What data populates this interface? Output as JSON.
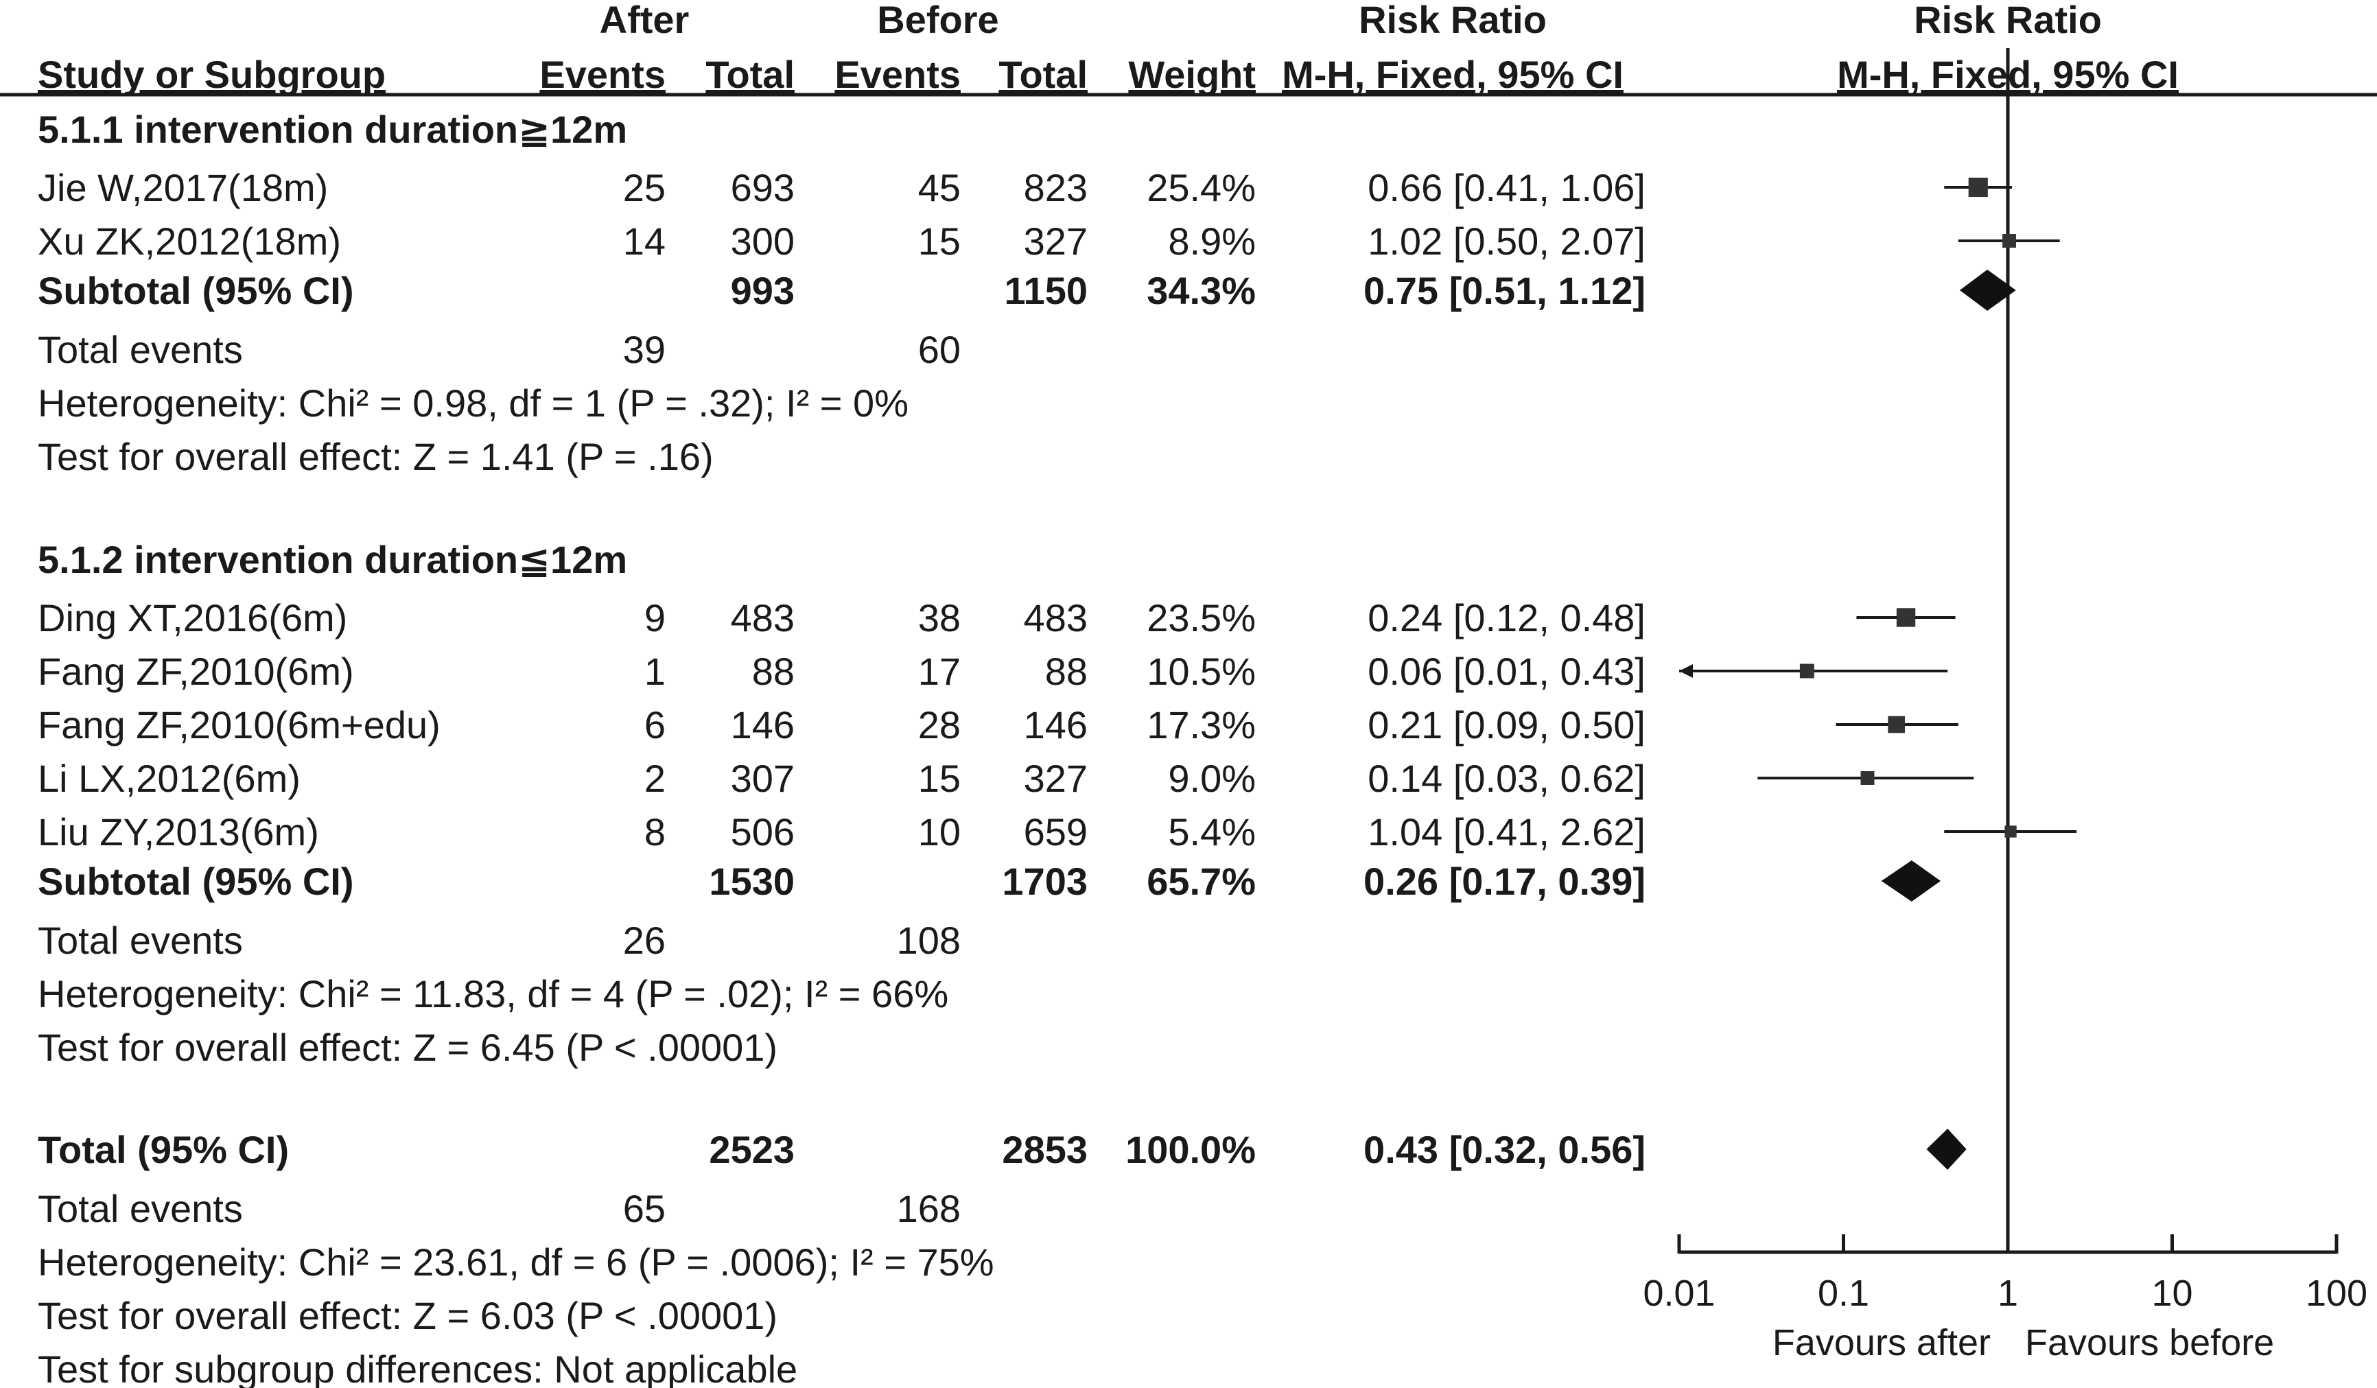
{
  "chart_data": {
    "type": "forest",
    "columns": {
      "group_after": "After",
      "group_before": "Before",
      "group_rr_table": "Risk Ratio",
      "group_rr_plot": "Risk Ratio",
      "study": "Study or Subgroup",
      "after_events": "Events",
      "after_total": "Total",
      "before_events": "Events",
      "before_total": "Total",
      "weight": "Weight",
      "rr_method_table": "M-H, Fixed, 95% CI",
      "rr_method_plot": "M-H, Fixed, 95% CI"
    },
    "axis": {
      "scale": "log",
      "range": [
        0.01,
        100
      ],
      "ticks": [
        0.01,
        0.1,
        1,
        10,
        100
      ],
      "tick_labels": [
        "0.01",
        "0.1",
        "1",
        "10",
        "100"
      ],
      "favours_left": "Favours after",
      "favours_right": "Favours before"
    },
    "groups": [
      {
        "title": "5.1.1 intervention duration≧12m",
        "studies": [
          {
            "name": "Jie W,2017(18m)",
            "after_events": "25",
            "after_total": "693",
            "before_events": "45",
            "before_total": "823",
            "weight": "25.4%",
            "ci_text": "0.66 [0.41, 1.06]",
            "rr": 0.66,
            "lo": 0.41,
            "hi": 1.06,
            "w": 25.4
          },
          {
            "name": "Xu ZK,2012(18m)",
            "after_events": "14",
            "after_total": "300",
            "before_events": "15",
            "before_total": "327",
            "weight": "8.9%",
            "ci_text": "1.02 [0.50, 2.07]",
            "rr": 1.02,
            "lo": 0.5,
            "hi": 2.07,
            "w": 8.9
          }
        ],
        "subtotal": {
          "label": "Subtotal (95% CI)",
          "after_total": "993",
          "before_total": "1150",
          "weight": "34.3%",
          "ci_text": "0.75 [0.51, 1.12]",
          "rr": 0.75,
          "lo": 0.51,
          "hi": 1.12
        },
        "total_events": {
          "label": "Total events",
          "after": "39",
          "before": "60"
        },
        "heterogeneity": "Heterogeneity: Chi² = 0.98, df = 1 (P = .32); I² = 0%",
        "overall": "Test for overall effect: Z = 1.41 (P = .16)"
      },
      {
        "title": "5.1.2 intervention duration≦12m",
        "studies": [
          {
            "name": "Ding XT,2016(6m)",
            "after_events": "9",
            "after_total": "483",
            "before_events": "38",
            "before_total": "483",
            "weight": "23.5%",
            "ci_text": "0.24 [0.12, 0.48]",
            "rr": 0.24,
            "lo": 0.12,
            "hi": 0.48,
            "w": 23.5
          },
          {
            "name": "Fang ZF,2010(6m)",
            "after_events": "1",
            "after_total": "88",
            "before_events": "17",
            "before_total": "88",
            "weight": "10.5%",
            "ci_text": "0.06 [0.01, 0.43]",
            "rr": 0.06,
            "lo": 0.01,
            "hi": 0.43,
            "w": 10.5
          },
          {
            "name": "Fang ZF,2010(6m+edu)",
            "after_events": "6",
            "after_total": "146",
            "before_events": "28",
            "before_total": "146",
            "weight": "17.3%",
            "ci_text": "0.21 [0.09, 0.50]",
            "rr": 0.21,
            "lo": 0.09,
            "hi": 0.5,
            "w": 17.3
          },
          {
            "name": "Li LX,2012(6m)",
            "after_events": "2",
            "after_total": "307",
            "before_events": "15",
            "before_total": "327",
            "weight": "9.0%",
            "ci_text": "0.14 [0.03, 0.62]",
            "rr": 0.14,
            "lo": 0.03,
            "hi": 0.62,
            "w": 9.0
          },
          {
            "name": "Liu ZY,2013(6m)",
            "after_events": "8",
            "after_total": "506",
            "before_events": "10",
            "before_total": "659",
            "weight": "5.4%",
            "ci_text": "1.04 [0.41, 2.62]",
            "rr": 1.04,
            "lo": 0.41,
            "hi": 2.62,
            "w": 5.4
          }
        ],
        "subtotal": {
          "label": "Subtotal (95% CI)",
          "after_total": "1530",
          "before_total": "1703",
          "weight": "65.7%",
          "ci_text": "0.26 [0.17, 0.39]",
          "rr": 0.26,
          "lo": 0.17,
          "hi": 0.39
        },
        "total_events": {
          "label": "Total events",
          "after": "26",
          "before": "108"
        },
        "heterogeneity": "Heterogeneity: Chi² = 11.83, df = 4 (P = .02); I² = 66%",
        "overall": "Test for overall effect: Z = 6.45 (P < .00001)"
      }
    ],
    "total": {
      "label": "Total (95% CI)",
      "after_total": "2523",
      "before_total": "2853",
      "weight": "100.0%",
      "ci_text": "0.43 [0.32, 0.56]",
      "rr": 0.43,
      "lo": 0.32,
      "hi": 0.56,
      "events_label": "Total events",
      "after_events": "65",
      "before_events": "168",
      "heterogeneity": "Heterogeneity: Chi² = 23.61, df = 6 (P = .0006); I² = 75%",
      "overall": "Test for overall effect: Z = 6.03 (P < .00001)",
      "subgroup_diff": "Test for subgroup differences: Not applicable"
    }
  }
}
